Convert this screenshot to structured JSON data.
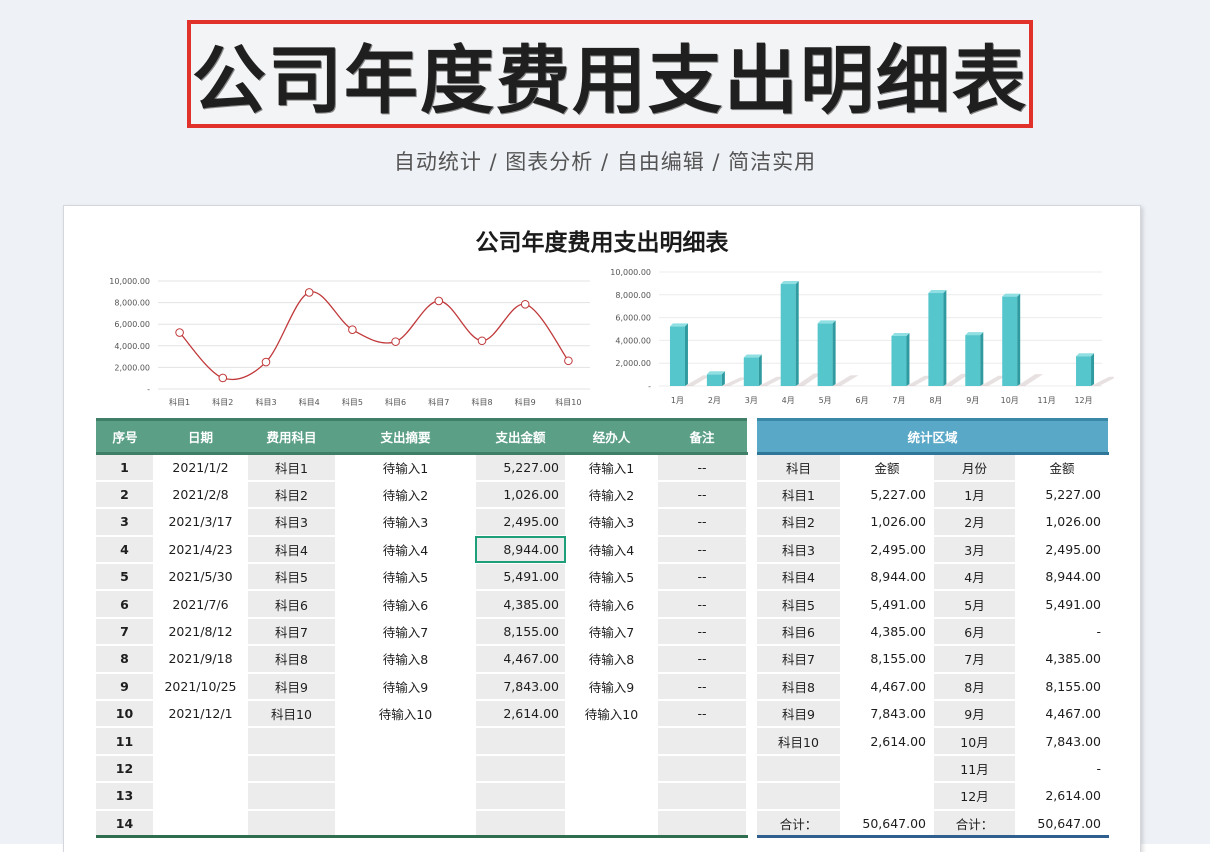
{
  "hero": {
    "title": "公司年度费用支出明细表",
    "subtitle": "自动统计 / 图表分析 / 自由编辑 / 简洁实用"
  },
  "card": {
    "title": "公司年度费用支出明细表"
  },
  "colors": {
    "line": "#c0393b",
    "bar": "#55c6cc",
    "bar_side": "#2f9aa0",
    "left_header": "#5b9f86",
    "right_header": "#5aa8c7",
    "title_border": "#e0312b"
  },
  "chart_data": [
    {
      "type": "line",
      "title": "",
      "categories": [
        "科目1",
        "科目2",
        "科目3",
        "科目4",
        "科目5",
        "科目6",
        "科目7",
        "科目8",
        "科目9",
        "科目10"
      ],
      "values": [
        5227,
        1026,
        2495,
        8944,
        5491,
        4385,
        8155,
        4467,
        7843,
        2614
      ],
      "ytick_labels": [
        "-",
        "2,000.00",
        "4,000.00",
        "6,000.00",
        "8,000.00",
        "10,000.00"
      ],
      "ylim": [
        0,
        10000
      ],
      "grid": true,
      "xlabel": "",
      "ylabel": ""
    },
    {
      "type": "bar",
      "title": "",
      "categories": [
        "1月",
        "2月",
        "3月",
        "4月",
        "5月",
        "6月",
        "7月",
        "8月",
        "9月",
        "10月",
        "11月",
        "12月"
      ],
      "values": [
        5227,
        1026,
        2495,
        8944,
        5491,
        0,
        4385,
        8155,
        4467,
        7843,
        0,
        2614
      ],
      "ytick_labels": [
        "-",
        "2,000.00",
        "4,000.00",
        "6,000.00",
        "8,000.00",
        "10,000.00"
      ],
      "ylim": [
        0,
        10000
      ],
      "grid": true,
      "xlabel": "",
      "ylabel": ""
    }
  ],
  "detail_table": {
    "headers": [
      "序号",
      "日期",
      "费用科目",
      "支出摘要",
      "支出金额",
      "经办人",
      "备注"
    ],
    "rows": [
      [
        "1",
        "2021/1/2",
        "科目1",
        "待输入1",
        "5,227.00",
        "待输入1",
        "--"
      ],
      [
        "2",
        "2021/2/8",
        "科目2",
        "待输入2",
        "1,026.00",
        "待输入2",
        "--"
      ],
      [
        "3",
        "2021/3/17",
        "科目3",
        "待输入3",
        "2,495.00",
        "待输入3",
        "--"
      ],
      [
        "4",
        "2021/4/23",
        "科目4",
        "待输入4",
        "8,944.00",
        "待输入4",
        "--"
      ],
      [
        "5",
        "2021/5/30",
        "科目5",
        "待输入5",
        "5,491.00",
        "待输入5",
        "--"
      ],
      [
        "6",
        "2021/7/6",
        "科目6",
        "待输入6",
        "4,385.00",
        "待输入6",
        "--"
      ],
      [
        "7",
        "2021/8/12",
        "科目7",
        "待输入7",
        "8,155.00",
        "待输入7",
        "--"
      ],
      [
        "8",
        "2021/9/18",
        "科目8",
        "待输入8",
        "4,467.00",
        "待输入8",
        "--"
      ],
      [
        "9",
        "2021/10/25",
        "科目9",
        "待输入9",
        "7,843.00",
        "待输入9",
        "--"
      ],
      [
        "10",
        "2021/12/1",
        "科目10",
        "待输入10",
        "2,614.00",
        "待输入10",
        "--"
      ],
      [
        "11",
        "",
        "",
        "",
        "",
        "",
        ""
      ],
      [
        "12",
        "",
        "",
        "",
        "",
        "",
        ""
      ],
      [
        "13",
        "",
        "",
        "",
        "",
        "",
        ""
      ],
      [
        "14",
        "",
        "",
        "",
        "",
        "",
        ""
      ]
    ],
    "selected_cell": {
      "row": 3,
      "col": 4
    }
  },
  "stats_table": {
    "title": "统计区域",
    "headers": [
      "科目",
      "金额",
      "月份",
      "金额"
    ],
    "rows": [
      [
        "科目1",
        "5,227.00",
        "1月",
        "5,227.00"
      ],
      [
        "科目2",
        "1,026.00",
        "2月",
        "1,026.00"
      ],
      [
        "科目3",
        "2,495.00",
        "3月",
        "2,495.00"
      ],
      [
        "科目4",
        "8,944.00",
        "4月",
        "8,944.00"
      ],
      [
        "科目5",
        "5,491.00",
        "5月",
        "5,491.00"
      ],
      [
        "科目6",
        "4,385.00",
        "6月",
        "-"
      ],
      [
        "科目7",
        "8,155.00",
        "7月",
        "4,385.00"
      ],
      [
        "科目8",
        "4,467.00",
        "8月",
        "8,155.00"
      ],
      [
        "科目9",
        "7,843.00",
        "9月",
        "4,467.00"
      ],
      [
        "科目10",
        "2,614.00",
        "10月",
        "7,843.00"
      ],
      [
        "",
        "",
        "11月",
        "-"
      ],
      [
        "",
        "",
        "12月",
        "2,614.00"
      ],
      [
        "合计：",
        "50,647.00",
        "合计：",
        "50,647.00"
      ]
    ]
  }
}
